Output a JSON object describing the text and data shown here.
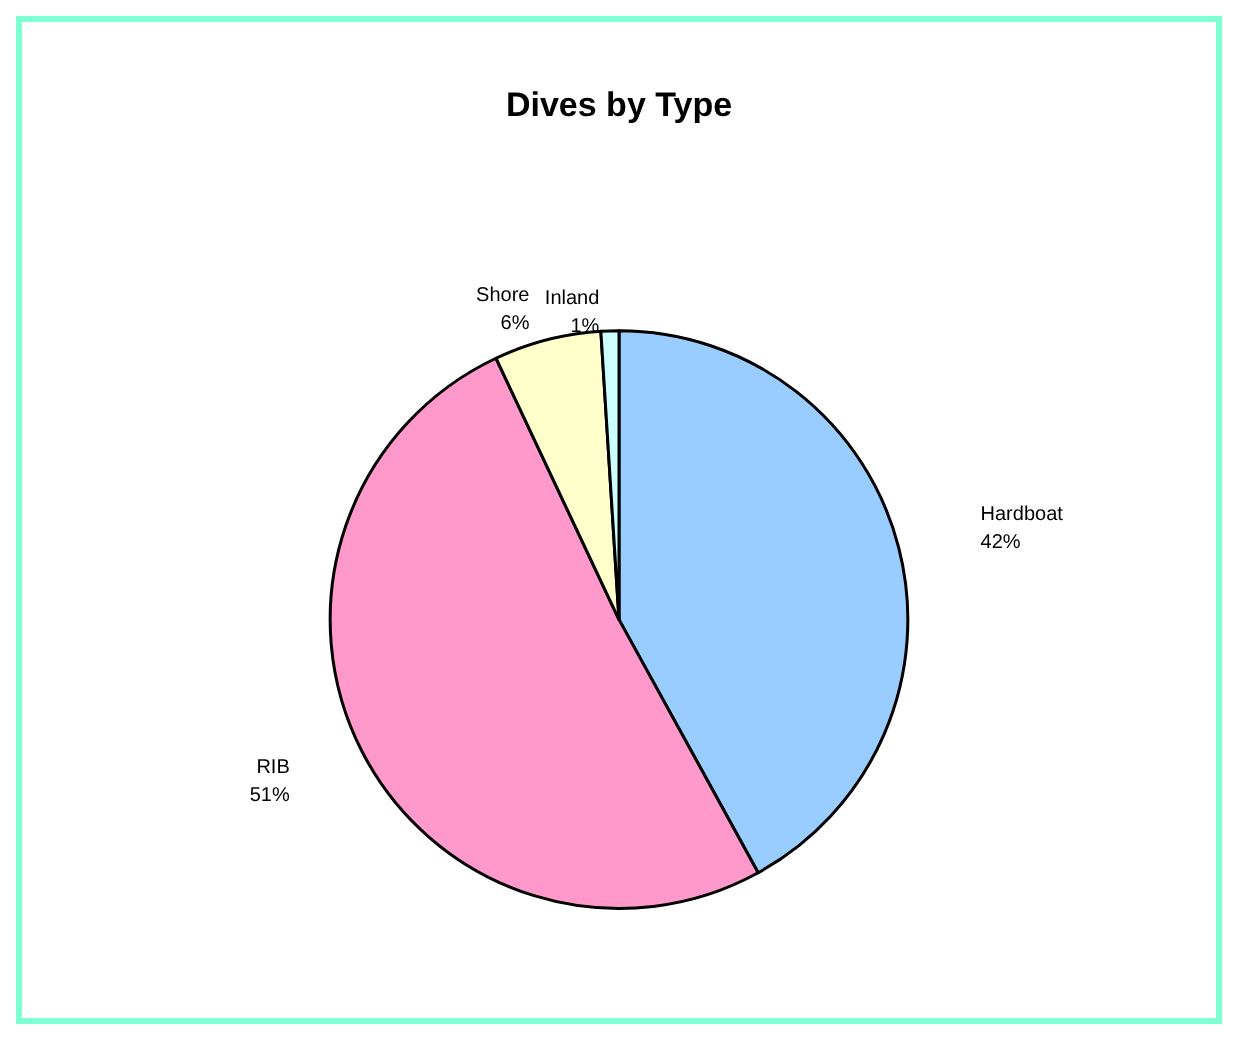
{
  "chart_data": {
    "type": "pie",
    "title": "Dives by Type",
    "categories": [
      "Hardboat",
      "RIB",
      "Shore",
      "Inland"
    ],
    "values": [
      42,
      51,
      6,
      1
    ],
    "value_labels": [
      "42%",
      "51%",
      "6%",
      "1%"
    ],
    "colors": [
      "#99ccff",
      "#ff99cc",
      "#ffffcc",
      "#ccffff"
    ]
  }
}
